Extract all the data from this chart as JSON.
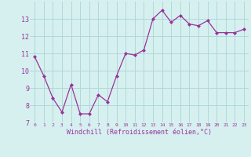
{
  "x": [
    0,
    1,
    2,
    3,
    4,
    5,
    6,
    7,
    8,
    9,
    10,
    11,
    12,
    13,
    14,
    15,
    16,
    17,
    18,
    19,
    20,
    21,
    22,
    23
  ],
  "y": [
    10.8,
    9.7,
    8.4,
    7.6,
    9.2,
    7.5,
    7.5,
    8.6,
    8.2,
    9.7,
    11.0,
    10.9,
    11.2,
    13.0,
    13.5,
    12.8,
    13.2,
    12.7,
    12.6,
    12.9,
    12.2,
    12.2,
    12.2,
    12.4
  ],
  "line_color": "#993399",
  "marker": "D",
  "marker_size": 2,
  "bg_color": "#d6f0f0",
  "grid_color": "#b0d8d8",
  "xlabel": "Windchill (Refroidissement éolien,°C)",
  "xlabel_color": "#993399",
  "tick_color": "#993399",
  "ylim": [
    7,
    14
  ],
  "xlim": [
    -0.5,
    23.5
  ],
  "yticks": [
    7,
    8,
    9,
    10,
    11,
    12,
    13
  ],
  "xticks": [
    0,
    1,
    2,
    3,
    4,
    5,
    6,
    7,
    8,
    9,
    10,
    11,
    12,
    13,
    14,
    15,
    16,
    17,
    18,
    19,
    20,
    21,
    22,
    23
  ],
  "xtick_fontsize": 4.5,
  "ytick_fontsize": 6.0,
  "xlabel_fontsize": 6.0
}
